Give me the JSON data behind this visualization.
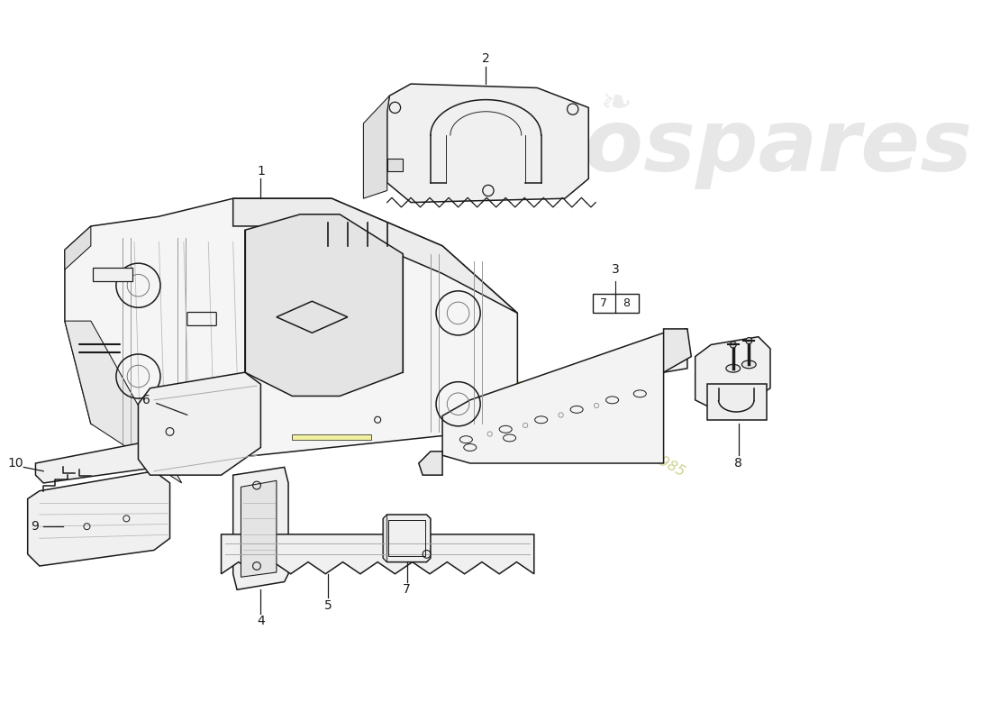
{
  "background_color": "#ffffff",
  "line_color": "#1a1a1a",
  "fill_color": "#f8f8f8",
  "fill_dark": "#ebebeb",
  "watermark_color": "#e0e0e0",
  "tagline_color": "#d4d4a0",
  "fig_width": 11.0,
  "fig_height": 8.0,
  "dpi": 100,
  "label_size": 10,
  "lw": 1.1
}
